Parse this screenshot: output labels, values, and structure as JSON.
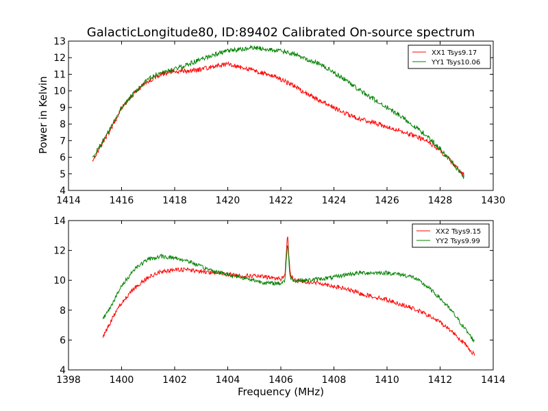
{
  "figure": {
    "title": "GalacticLongitude80, ID:89402 Calibrated On-source spectrum",
    "colors": {
      "xx": "#ff0000",
      "yy": "#008000"
    }
  },
  "chart_data": [
    {
      "type": "line",
      "title": "GalacticLongitude80, ID:89402 Calibrated On-source spectrum",
      "xlabel": "",
      "ylabel": "Power in Kelvin",
      "xlim": [
        1414,
        1430
      ],
      "ylim": [
        4,
        13
      ],
      "xticks": [
        1414,
        1416,
        1418,
        1420,
        1422,
        1424,
        1426,
        1428,
        1430
      ],
      "yticks": [
        4,
        5,
        6,
        7,
        8,
        9,
        10,
        11,
        12,
        13
      ],
      "grid": false,
      "legend": "top-right",
      "series": [
        {
          "name": "XX1 Tsys9.17",
          "color": "#ff0000",
          "x": [
            1414.9,
            1415.3,
            1415.7,
            1416.0,
            1416.5,
            1417.0,
            1417.5,
            1418.0,
            1418.5,
            1419.0,
            1419.5,
            1420.0,
            1420.5,
            1421.0,
            1421.5,
            1422.0,
            1422.5,
            1423.0,
            1423.5,
            1424.0,
            1424.5,
            1425.0,
            1425.5,
            1426.0,
            1426.5,
            1427.0,
            1427.5,
            1428.0,
            1428.5,
            1428.9
          ],
          "y": [
            5.8,
            6.9,
            8.0,
            9.0,
            9.9,
            10.6,
            11.0,
            11.2,
            11.2,
            11.3,
            11.5,
            11.6,
            11.4,
            11.2,
            11.0,
            10.7,
            10.3,
            9.8,
            9.4,
            9.0,
            8.6,
            8.3,
            8.1,
            7.8,
            7.6,
            7.3,
            7.0,
            6.4,
            5.6,
            4.9
          ]
        },
        {
          "name": "YY1 Tsys10.06",
          "color": "#008000",
          "x": [
            1414.9,
            1415.3,
            1415.7,
            1416.0,
            1416.5,
            1417.0,
            1417.5,
            1418.0,
            1418.5,
            1419.0,
            1419.5,
            1420.0,
            1420.5,
            1421.0,
            1421.5,
            1422.0,
            1422.5,
            1423.0,
            1423.5,
            1424.0,
            1424.5,
            1425.0,
            1425.5,
            1426.0,
            1426.5,
            1427.0,
            1427.5,
            1428.0,
            1428.5,
            1428.9
          ],
          "y": [
            5.9,
            7.0,
            8.1,
            9.0,
            9.9,
            10.7,
            11.1,
            11.3,
            11.6,
            11.9,
            12.2,
            12.4,
            12.5,
            12.6,
            12.5,
            12.4,
            12.2,
            11.9,
            11.6,
            11.1,
            10.6,
            10.0,
            9.5,
            9.0,
            8.5,
            7.9,
            7.3,
            6.5,
            5.6,
            4.8
          ]
        }
      ]
    },
    {
      "type": "line",
      "title": "",
      "xlabel": "Frequency (MHz)",
      "ylabel": "",
      "xlim": [
        1398,
        1414
      ],
      "ylim": [
        4,
        14
      ],
      "xticks": [
        1398,
        1400,
        1402,
        1404,
        1406,
        1408,
        1410,
        1412,
        1414
      ],
      "yticks": [
        4,
        6,
        8,
        10,
        12,
        14
      ],
      "grid": false,
      "legend": "top-right",
      "series": [
        {
          "name": "XX2 Tsys9.15",
          "color": "#ff0000",
          "x": [
            1399.3,
            1399.7,
            1400.0,
            1400.5,
            1401.0,
            1401.5,
            1402.0,
            1402.5,
            1403.0,
            1403.5,
            1404.0,
            1404.5,
            1405.0,
            1405.5,
            1406.0,
            1406.15,
            1406.25,
            1406.35,
            1406.5,
            1407.0,
            1407.5,
            1408.0,
            1408.5,
            1409.0,
            1409.5,
            1410.0,
            1410.5,
            1411.0,
            1411.5,
            1412.0,
            1412.5,
            1413.0,
            1413.3
          ],
          "y": [
            6.2,
            7.6,
            8.5,
            9.5,
            10.2,
            10.6,
            10.7,
            10.7,
            10.6,
            10.5,
            10.4,
            10.3,
            10.3,
            10.2,
            10.1,
            10.3,
            13.1,
            10.4,
            10.0,
            9.9,
            9.8,
            9.6,
            9.4,
            9.1,
            8.9,
            8.7,
            8.4,
            8.1,
            7.7,
            7.2,
            6.5,
            5.6,
            5.0
          ]
        },
        {
          "name": "YY2 Tsys9.99",
          "color": "#008000",
          "x": [
            1399.3,
            1399.7,
            1400.0,
            1400.5,
            1401.0,
            1401.5,
            1402.0,
            1402.5,
            1403.0,
            1403.5,
            1404.0,
            1404.5,
            1405.0,
            1405.5,
            1406.0,
            1406.15,
            1406.25,
            1406.35,
            1406.5,
            1407.0,
            1407.5,
            1408.0,
            1408.5,
            1409.0,
            1409.5,
            1410.0,
            1410.5,
            1411.0,
            1411.5,
            1412.0,
            1412.5,
            1413.0,
            1413.3
          ],
          "y": [
            7.4,
            8.6,
            9.6,
            10.8,
            11.4,
            11.6,
            11.5,
            11.3,
            10.9,
            10.6,
            10.4,
            10.2,
            10.0,
            9.8,
            9.8,
            10.0,
            12.5,
            10.2,
            10.0,
            10.0,
            10.1,
            10.2,
            10.4,
            10.5,
            10.5,
            10.5,
            10.4,
            10.2,
            9.6,
            8.8,
            7.8,
            6.6,
            5.9
          ]
        }
      ]
    }
  ]
}
